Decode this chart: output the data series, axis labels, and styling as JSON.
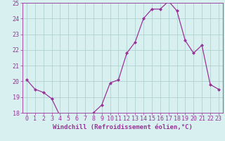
{
  "x": [
    0,
    1,
    2,
    3,
    4,
    5,
    6,
    7,
    8,
    9,
    10,
    11,
    12,
    13,
    14,
    15,
    16,
    17,
    18,
    19,
    20,
    21,
    22,
    23
  ],
  "y": [
    20.1,
    19.5,
    19.3,
    18.9,
    17.8,
    17.8,
    17.7,
    17.7,
    18.0,
    18.5,
    19.9,
    20.1,
    21.8,
    22.5,
    24.0,
    24.6,
    24.6,
    25.1,
    24.5,
    22.6,
    21.8,
    22.3,
    19.8,
    19.5
  ],
  "xlabel": "Windchill (Refroidissement éolien,°C)",
  "ylim": [
    18,
    25
  ],
  "xlim": [
    -0.5,
    23.5
  ],
  "yticks": [
    18,
    19,
    20,
    21,
    22,
    23,
    24,
    25
  ],
  "xticks": [
    0,
    1,
    2,
    3,
    4,
    5,
    6,
    7,
    8,
    9,
    10,
    11,
    12,
    13,
    14,
    15,
    16,
    17,
    18,
    19,
    20,
    21,
    22,
    23
  ],
  "line_color": "#993399",
  "marker": "D",
  "marker_size": 2.0,
  "background_color": "#d8f0f0",
  "grid_color": "#aacccc",
  "xlabel_fontsize": 6.5,
  "tick_fontsize": 6.0,
  "line_width": 0.9
}
